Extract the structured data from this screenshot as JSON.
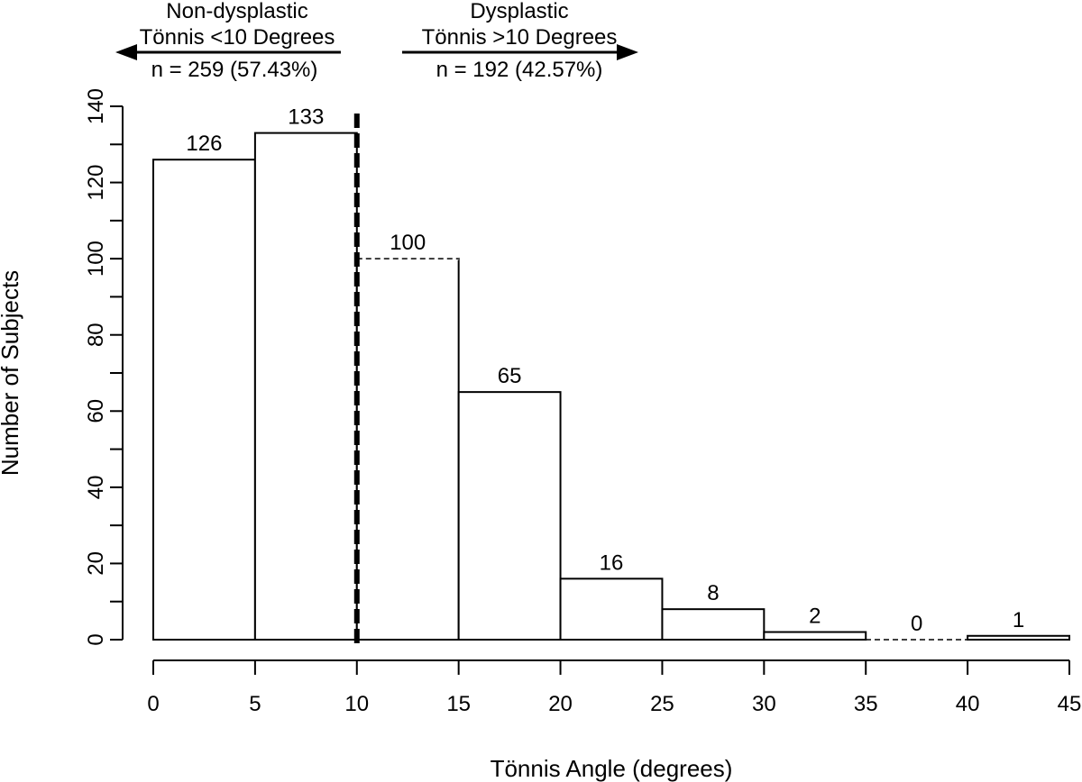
{
  "chart_data": {
    "type": "bar",
    "title": "",
    "xlabel": "Tönnis Angle (degrees)",
    "ylabel": "Number of Subjects",
    "x_ticks": [
      "0",
      "5",
      "10",
      "15",
      "20",
      "25",
      "30",
      "35",
      "40",
      "45"
    ],
    "y_ticks": [
      "0",
      "20",
      "40",
      "60",
      "80",
      "100",
      "120",
      "140"
    ],
    "xlim": [
      0,
      45
    ],
    "ylim": [
      0,
      140
    ],
    "bins": [
      {
        "from": 0,
        "to": 5,
        "value": 126,
        "label": "126"
      },
      {
        "from": 5,
        "to": 10,
        "value": 133,
        "label": "133"
      },
      {
        "from": 10,
        "to": 15,
        "value": 100,
        "label": "100"
      },
      {
        "from": 15,
        "to": 20,
        "value": 65,
        "label": "65"
      },
      {
        "from": 20,
        "to": 25,
        "value": 16,
        "label": "16"
      },
      {
        "from": 25,
        "to": 30,
        "value": 8,
        "label": "8"
      },
      {
        "from": 30,
        "to": 35,
        "value": 2,
        "label": "2"
      },
      {
        "from": 35,
        "to": 40,
        "value": 0,
        "label": "0"
      },
      {
        "from": 40,
        "to": 45,
        "value": 1,
        "label": "1"
      }
    ],
    "threshold": 10,
    "annotations": {
      "left": {
        "line1": "Non-dysplastic",
        "line2": "Tönnis <10 Degrees",
        "line3": "n = 259 (57.43%)",
        "arrow": "left"
      },
      "right": {
        "line1": "Dysplastic",
        "line2": "Tönnis >10 Degrees",
        "line3": "n = 192 (42.57%)",
        "arrow": "right"
      }
    },
    "grid": false,
    "colors": {
      "bar_fill": "#ffffff",
      "stroke": "#000000"
    }
  }
}
